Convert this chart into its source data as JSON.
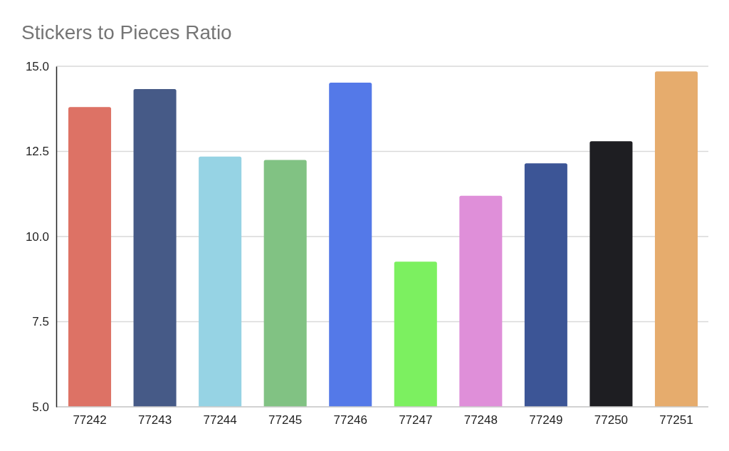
{
  "chart_data": {
    "type": "bar",
    "title": "Stickers to Pieces Ratio",
    "categories": [
      "77242",
      "77243",
      "77244",
      "77245",
      "77246",
      "77247",
      "77248",
      "77249",
      "77250",
      "77251"
    ],
    "values": [
      13.8,
      14.33,
      12.35,
      12.25,
      14.52,
      9.26,
      11.2,
      12.15,
      12.8,
      14.85
    ],
    "colors": [
      "#dd7265",
      "#465a87",
      "#96d3e4",
      "#81c283",
      "#5479e8",
      "#7cf060",
      "#df8fd9",
      "#3c5596",
      "#1e1e22",
      "#e6ac6d"
    ],
    "ylim": [
      5,
      15
    ],
    "yticks": [
      {
        "value": 5,
        "label": "5.0"
      },
      {
        "value": 7.5,
        "label": "7.5"
      },
      {
        "value": 10,
        "label": "10.0"
      },
      {
        "value": 12.5,
        "label": "12.5"
      },
      {
        "value": 15,
        "label": "15.0"
      }
    ],
    "grid": "y"
  }
}
